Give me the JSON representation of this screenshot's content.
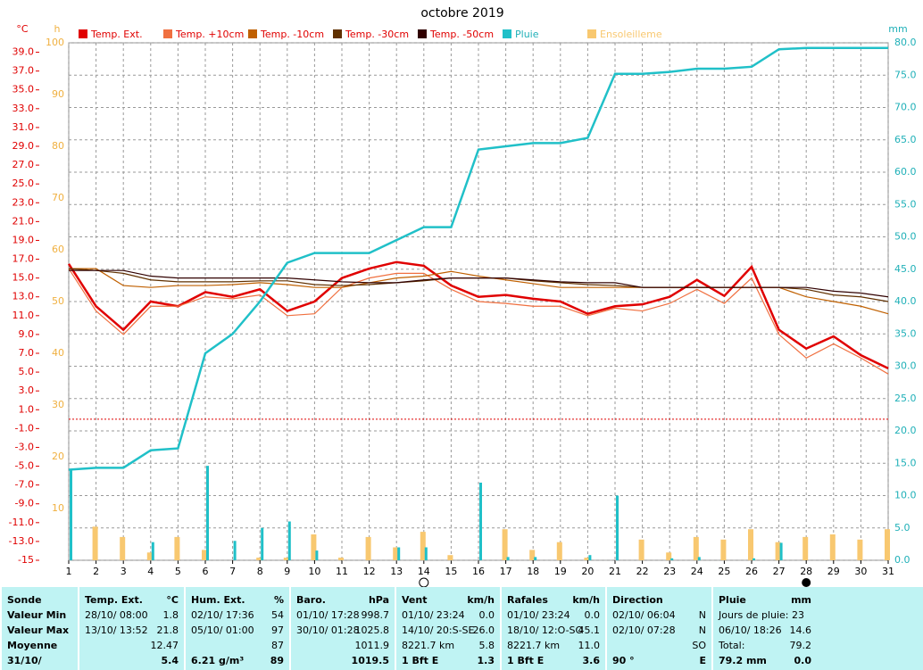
{
  "chart_data": {
    "type": "combo",
    "title": "octobre 2019",
    "ylabel": "°C",
    "y2label": "mm",
    "y3label": "h",
    "x": [
      1,
      2,
      3,
      4,
      5,
      6,
      7,
      8,
      9,
      10,
      11,
      12,
      13,
      14,
      15,
      16,
      17,
      18,
      19,
      20,
      21,
      22,
      23,
      24,
      25,
      26,
      27,
      28,
      29,
      30,
      31
    ],
    "xlim": [
      1,
      31
    ],
    "xticks": [
      1,
      2,
      3,
      4,
      5,
      6,
      7,
      8,
      9,
      10,
      11,
      12,
      13,
      14,
      15,
      16,
      17,
      18,
      19,
      20,
      21,
      22,
      23,
      24,
      25,
      26,
      27,
      28,
      29,
      30,
      31
    ],
    "ylim": [
      -15,
      40
    ],
    "yticks": [
      -15,
      {
        "value": -13,
        "label": "-13.0"
      },
      {
        "value": -11,
        "label": "-11.0"
      },
      {
        "value": -9,
        "label": "-9.0"
      },
      {
        "value": -7,
        "label": "-7.0"
      },
      {
        "value": -5,
        "label": "-5.0"
      },
      {
        "value": -3,
        "label": "-3.0"
      },
      {
        "value": -1,
        "label": "-1.0"
      },
      {
        "value": 1,
        "label": "1.0"
      },
      {
        "value": 3,
        "label": "3.0"
      },
      {
        "value": 5,
        "label": "5.0"
      },
      {
        "value": 7,
        "label": "7.0"
      },
      {
        "value": 9,
        "label": "9.0"
      },
      {
        "value": 11,
        "label": "11.0"
      },
      {
        "value": 13,
        "label": "13.0"
      },
      {
        "value": 15,
        "label": "15.0"
      },
      {
        "value": 17,
        "label": "17.0"
      },
      {
        "value": 19,
        "label": "19.0"
      },
      {
        "value": 21,
        "label": "21.0"
      },
      {
        "value": 23,
        "label": "23.0"
      },
      {
        "value": 25,
        "label": "25.0"
      },
      {
        "value": 27,
        "label": "27.0"
      },
      {
        "value": 29,
        "label": "29.0"
      },
      {
        "value": 31,
        "label": "31.0"
      },
      {
        "value": 33,
        "label": "33.0"
      },
      {
        "value": 35,
        "label": "35.0"
      },
      {
        "value": 37,
        "label": "37.0"
      },
      {
        "value": 39,
        "label": "39.0"
      }
    ],
    "y2lim": [
      0,
      80
    ],
    "y2ticks": [
      {
        "value": 0,
        "label": "0.0"
      },
      {
        "value": 5,
        "label": "5.0"
      },
      {
        "value": 10,
        "label": "10.0"
      },
      {
        "value": 15,
        "label": "15.0"
      },
      {
        "value": 20,
        "label": "20.0"
      },
      {
        "value": 25,
        "label": "25.0"
      },
      {
        "value": 30,
        "label": "30.0"
      },
      {
        "value": 35,
        "label": "35.0"
      },
      {
        "value": 40,
        "label": "40.0"
      },
      {
        "value": 45,
        "label": "45.0"
      },
      {
        "value": 50,
        "label": "50.0"
      },
      {
        "value": 55,
        "label": "55.0"
      },
      {
        "value": 60,
        "label": "60.0"
      },
      {
        "value": 65,
        "label": "65.0"
      },
      {
        "value": 70,
        "label": "70.0"
      },
      {
        "value": 75,
        "label": "75.0"
      },
      {
        "value": 80,
        "label": "80.0"
      }
    ],
    "y3lim": [
      0,
      100
    ],
    "y3ticks": [
      10,
      20,
      30,
      40,
      50,
      60,
      70,
      80,
      90,
      100
    ],
    "grid": true,
    "series": [
      {
        "name": "Temp. Ext.",
        "type": "line",
        "axis": "y",
        "color": "#e00000",
        "values": [
          16.5,
          12,
          9.5,
          12.5,
          12,
          13.5,
          13,
          13.8,
          11.5,
          12.5,
          15,
          16,
          16.7,
          16.3,
          14.2,
          13,
          13.2,
          12.8,
          12.5,
          11.2,
          12,
          12.2,
          13,
          14.8,
          13.1,
          16.2,
          9.5,
          7.5,
          8.8,
          6.8,
          5.4
        ]
      },
      {
        "name": "Temp. +10cm",
        "type": "line",
        "axis": "y",
        "color": "#f07040",
        "values": [
          16,
          11.5,
          9,
          12,
          12,
          13,
          12.8,
          13.2,
          11,
          11.2,
          14,
          15,
          15.5,
          15.5,
          13.8,
          12.5,
          12.3,
          12,
          12,
          11,
          11.8,
          11.5,
          12.3,
          13.8,
          12.3,
          15,
          9,
          6.5,
          8,
          6.5,
          4.8
        ]
      },
      {
        "name": "Temp. -10cm",
        "type": "line",
        "axis": "y",
        "color": "#c06000",
        "values": [
          16,
          16,
          14.2,
          14,
          14.2,
          14.2,
          14.3,
          14.5,
          14.3,
          14,
          14,
          14.5,
          15,
          15.2,
          15.7,
          15.2,
          14.8,
          14.4,
          14,
          14,
          14,
          14,
          14,
          14,
          14,
          14,
          14,
          13,
          12.5,
          12,
          11.2
        ]
      },
      {
        "name": "Temp. -30cm",
        "type": "line",
        "axis": "y",
        "color": "#603000",
        "values": [
          16,
          15.8,
          15.5,
          14.8,
          14.6,
          14.6,
          14.6,
          14.7,
          14.7,
          14.3,
          14.2,
          14.3,
          14.5,
          14.7,
          15,
          15,
          15,
          14.7,
          14.5,
          14.3,
          14.2,
          14,
          14,
          14,
          14,
          14,
          14,
          13.8,
          13.2,
          13,
          12.5
        ]
      },
      {
        "name": "Temp. -50cm",
        "type": "line",
        "axis": "y",
        "color": "#300000",
        "values": [
          15.8,
          15.8,
          15.8,
          15.2,
          15,
          15,
          15,
          15,
          15,
          14.8,
          14.6,
          14.5,
          14.5,
          14.8,
          15,
          15,
          15,
          14.8,
          14.6,
          14.5,
          14.5,
          14,
          14,
          14,
          14,
          14,
          14,
          14,
          13.6,
          13.4,
          13
        ]
      },
      {
        "name": "Pluie",
        "type": "line",
        "axis": "y2",
        "color": "#20c0c8",
        "values": [
          14,
          14.3,
          14.3,
          17,
          17.3,
          32,
          35,
          40,
          46,
          47.5,
          47.5,
          47.5,
          49.5,
          51.5,
          51.5,
          63.5,
          64,
          64.5,
          64.5,
          65.3,
          75.2,
          75.2,
          75.5,
          76,
          76,
          76.3,
          79,
          79.2,
          79.2,
          79.2,
          79.2
        ]
      },
      {
        "name": "Ensoleilleme",
        "type": "bar",
        "axis": "y3",
        "color": "#f8c870",
        "values": [
          0,
          6.5,
          4.5,
          1.5,
          4.5,
          2,
          0,
          0.5,
          0.5,
          5,
          0.5,
          4.5,
          2.5,
          5.5,
          1,
          0,
          6,
          2,
          3.5,
          0.5,
          0,
          4,
          1.5,
          4.5,
          4,
          6,
          3.5,
          4.5,
          5,
          4,
          6
        ]
      },
      {
        "type": "bar",
        "axis": "y2",
        "color": "#20c0c8",
        "values": [
          14,
          0,
          0,
          2.8,
          0,
          14.6,
          3,
          5,
          6,
          1.5,
          0,
          0,
          2,
          2,
          0,
          12,
          0.5,
          0.5,
          0,
          0.8,
          10,
          0,
          0.3,
          0.5,
          0,
          0.3,
          2.7,
          0,
          0,
          0,
          0
        ]
      }
    ]
  },
  "table": {
    "columns": [
      {
        "header": "Sonde",
        "rows": [
          {
            "text": "Valeur Min"
          },
          {
            "text": "Valeur Max"
          },
          {
            "text": "Moyenne"
          },
          {
            "text": "31/10/"
          }
        ]
      },
      {
        "header": "Temp. Ext.",
        "unit": "°C",
        "rows": [
          {
            "text": "28/10/  08:00",
            "value": "1.8"
          },
          {
            "text": "13/10/  13:52",
            "value": "21.8"
          },
          {
            "value": "12.47"
          },
          {
            "value": "5.4"
          }
        ]
      },
      {
        "header": "Hum. Ext.",
        "unit": "%",
        "rows": [
          {
            "text": "02/10/  17:36",
            "value": "54"
          },
          {
            "text": "05/10/  01:00",
            "value": "97"
          },
          {
            "value": "87"
          },
          {
            "text": "6.21 g/m³",
            "value": "89"
          }
        ]
      },
      {
        "header": "Baro.",
        "unit": "hPa",
        "rows": [
          {
            "text": "01/10/  17:28",
            "value": "998.7"
          },
          {
            "text": "30/10/  01:28",
            "value": "1025.8"
          },
          {
            "value": "1011.9"
          },
          {
            "value": "1019.5"
          }
        ]
      },
      {
        "header": "Vent",
        "unit": "km/h",
        "rows": [
          {
            "text": "01/10/  23:24",
            "value": "0.0"
          },
          {
            "text": "14/10/  20:S-SE",
            "value": "26.0"
          },
          {
            "text": "8221.7 km",
            "value": "5.8"
          },
          {
            "text": "1 Bft E",
            "value": "1.3"
          }
        ]
      },
      {
        "header": "Rafales",
        "unit": "km/h",
        "rows": [
          {
            "text": "01/10/  23:24",
            "value": "0.0"
          },
          {
            "text": "18/10/  12:O-SO",
            "value": "45.1"
          },
          {
            "text": "8221.7 km",
            "value": "11.0"
          },
          {
            "text": "1 Bft E",
            "value": "3.6"
          }
        ]
      },
      {
        "header": "Direction",
        "rows": [
          {
            "text": "02/10/  06:04",
            "value": "N"
          },
          {
            "text": "02/10/  07:28",
            "value": "N"
          },
          {
            "value": "SO"
          },
          {
            "text": "90 °",
            "value": "E"
          }
        ]
      },
      {
        "header": "Pluie",
        "unit": "mm",
        "rows": [
          {
            "text": "Jours de pluie: 23"
          },
          {
            "text": "06/10/  18:26",
            "value": "14.6"
          },
          {
            "text": "Total:",
            "value": "79.2"
          },
          {
            "text": "79.2 mm",
            "value": "0.0"
          }
        ]
      }
    ]
  }
}
